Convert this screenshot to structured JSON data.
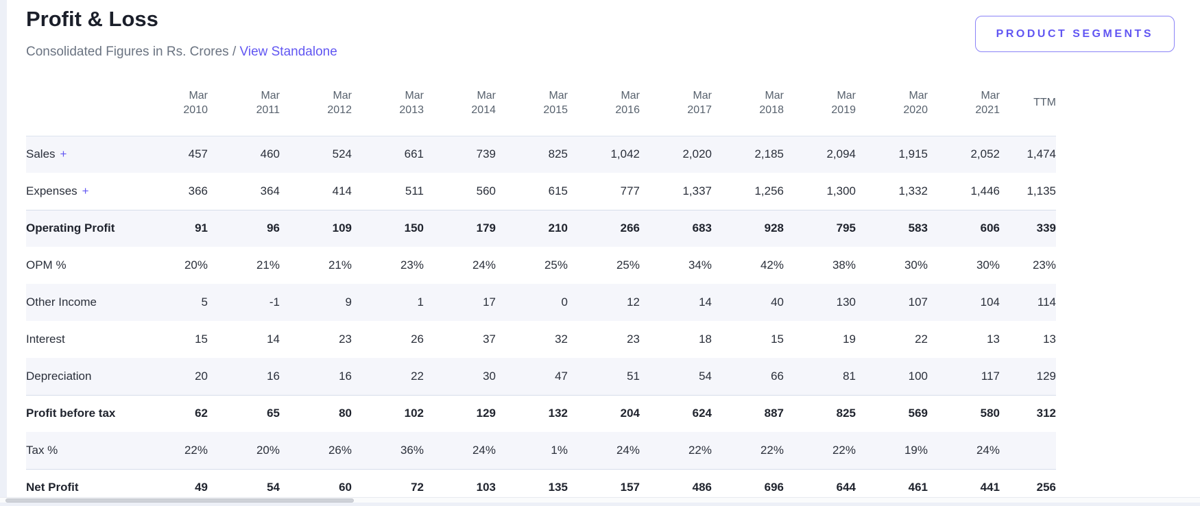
{
  "header": {
    "title": "Profit & Loss",
    "subtitle_prefix": "Consolidated Figures in Rs. Crores / ",
    "standalone_link": "View Standalone",
    "segments_button": "PRODUCT SEGMENTS"
  },
  "colors": {
    "accent": "#6156F2",
    "accent_border": "#8A82F7",
    "row_stripe": "#F5F6FB",
    "strong_row_border": "#D6DDEA",
    "header_text": "#57616D",
    "body_text": "#2A2F3A",
    "page_background": "#EDF0F7"
  },
  "table": {
    "ttm_label": "TTM",
    "columns": [
      {
        "month": "Mar",
        "year": "2010"
      },
      {
        "month": "Mar",
        "year": "2011"
      },
      {
        "month": "Mar",
        "year": "2012"
      },
      {
        "month": "Mar",
        "year": "2013"
      },
      {
        "month": "Mar",
        "year": "2014"
      },
      {
        "month": "Mar",
        "year": "2015"
      },
      {
        "month": "Mar",
        "year": "2016"
      },
      {
        "month": "Mar",
        "year": "2017"
      },
      {
        "month": "Mar",
        "year": "2018"
      },
      {
        "month": "Mar",
        "year": "2019"
      },
      {
        "month": "Mar",
        "year": "2020"
      },
      {
        "month": "Mar",
        "year": "2021"
      }
    ],
    "rows": [
      {
        "label": "Sales",
        "expandable": true,
        "style": "normal",
        "values": [
          "457",
          "460",
          "524",
          "661",
          "739",
          "825",
          "1,042",
          "2,020",
          "2,185",
          "2,094",
          "1,915",
          "2,052",
          "1,474"
        ]
      },
      {
        "label": "Expenses",
        "expandable": true,
        "style": "normal",
        "values": [
          "366",
          "364",
          "414",
          "511",
          "560",
          "615",
          "777",
          "1,337",
          "1,256",
          "1,300",
          "1,332",
          "1,446",
          "1,135"
        ]
      },
      {
        "label": "Operating Profit",
        "expandable": false,
        "style": "strong",
        "values": [
          "91",
          "96",
          "109",
          "150",
          "179",
          "210",
          "266",
          "683",
          "928",
          "795",
          "583",
          "606",
          "339"
        ]
      },
      {
        "label": "OPM %",
        "expandable": false,
        "style": "normal",
        "values": [
          "20%",
          "21%",
          "21%",
          "23%",
          "24%",
          "25%",
          "25%",
          "34%",
          "42%",
          "38%",
          "30%",
          "30%",
          "23%"
        ]
      },
      {
        "label": "Other Income",
        "expandable": false,
        "style": "normal",
        "values": [
          "5",
          "-1",
          "9",
          "1",
          "17",
          "0",
          "12",
          "14",
          "40",
          "130",
          "107",
          "104",
          "114"
        ]
      },
      {
        "label": "Interest",
        "expandable": false,
        "style": "normal",
        "values": [
          "15",
          "14",
          "23",
          "26",
          "37",
          "32",
          "23",
          "18",
          "15",
          "19",
          "22",
          "13",
          "13"
        ]
      },
      {
        "label": "Depreciation",
        "expandable": false,
        "style": "normal",
        "values": [
          "20",
          "16",
          "16",
          "22",
          "30",
          "47",
          "51",
          "54",
          "66",
          "81",
          "100",
          "117",
          "129"
        ]
      },
      {
        "label": "Profit before tax",
        "expandable": false,
        "style": "strong",
        "values": [
          "62",
          "65",
          "80",
          "102",
          "129",
          "132",
          "204",
          "624",
          "887",
          "825",
          "569",
          "580",
          "312"
        ]
      },
      {
        "label": "Tax %",
        "expandable": false,
        "style": "normal",
        "values": [
          "22%",
          "20%",
          "26%",
          "36%",
          "24%",
          "1%",
          "24%",
          "22%",
          "22%",
          "22%",
          "19%",
          "24%",
          ""
        ]
      },
      {
        "label": "Net Profit",
        "expandable": false,
        "style": "strong",
        "values": [
          "49",
          "54",
          "60",
          "72",
          "103",
          "135",
          "157",
          "486",
          "696",
          "644",
          "461",
          "441",
          "256"
        ]
      }
    ],
    "expand_icon": "+"
  },
  "scrollbar": {
    "orientation": "horizontal"
  }
}
